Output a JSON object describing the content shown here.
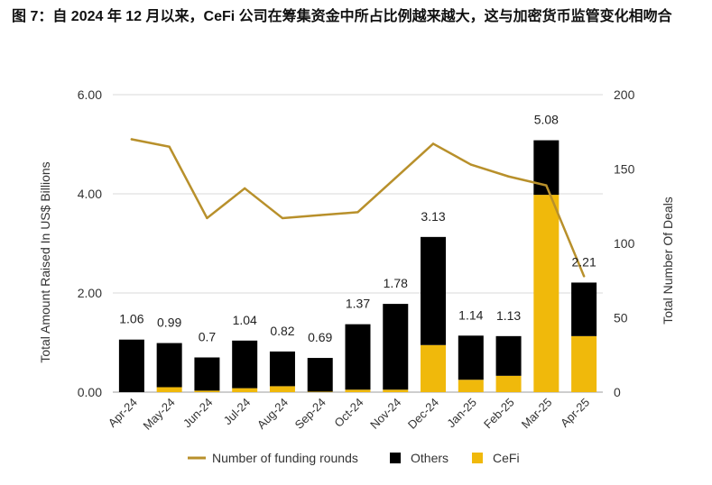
{
  "chart_data": {
    "type": "bar",
    "stacked": true,
    "title": "图 7：自 2024 年 12 月以来，CeFi 公司在筹集资金中所占比例越来越大，这与加密货币监管变化相吻合",
    "categories": [
      "Apr-24",
      "May-24",
      "Jun-24",
      "Jul-24",
      "Aug-24",
      "Sep-24",
      "Oct-24",
      "Nov-24",
      "Dec-24",
      "Jan-25",
      "Feb-25",
      "Mar-25",
      "Apr-25"
    ],
    "series": [
      {
        "name": "CeFi",
        "type": "bar",
        "axis": "left",
        "color": "#F0B90B",
        "values": [
          0,
          0.1,
          0.03,
          0.08,
          0.12,
          0.01,
          0.05,
          0.05,
          0.95,
          0.25,
          0.33,
          3.98,
          1.13
        ]
      },
      {
        "name": "Others",
        "type": "bar",
        "axis": "left",
        "color": "#000000",
        "values": [
          1.06,
          0.89,
          0.67,
          0.96,
          0.7,
          0.68,
          1.32,
          1.73,
          2.18,
          0.89,
          0.8,
          1.1,
          1.08
        ]
      },
      {
        "name": "Number of funding rounds",
        "type": "line",
        "axis": "right",
        "color": "#B8902B",
        "values": [
          170,
          165,
          117,
          137,
          117,
          119,
          121,
          144,
          167,
          153,
          145,
          139,
          78
        ]
      }
    ],
    "totals": [
      1.06,
      0.99,
      0.7,
      1.04,
      0.82,
      0.69,
      1.37,
      1.78,
      3.13,
      1.14,
      1.13,
      5.08,
      2.21
    ],
    "ylabel": "Total Amount Raised In US$ Billions",
    "y2label": "Total Number Of Deals",
    "ylim": [
      0,
      6
    ],
    "y2lim": [
      0,
      200
    ],
    "yticks": [
      "0.00",
      "2.00",
      "4.00",
      "6.00"
    ],
    "y2ticks": [
      "0",
      "50",
      "100",
      "150",
      "200"
    ],
    "grid": true,
    "legend": {
      "position": "bottom",
      "order": [
        2,
        1,
        0
      ]
    }
  }
}
